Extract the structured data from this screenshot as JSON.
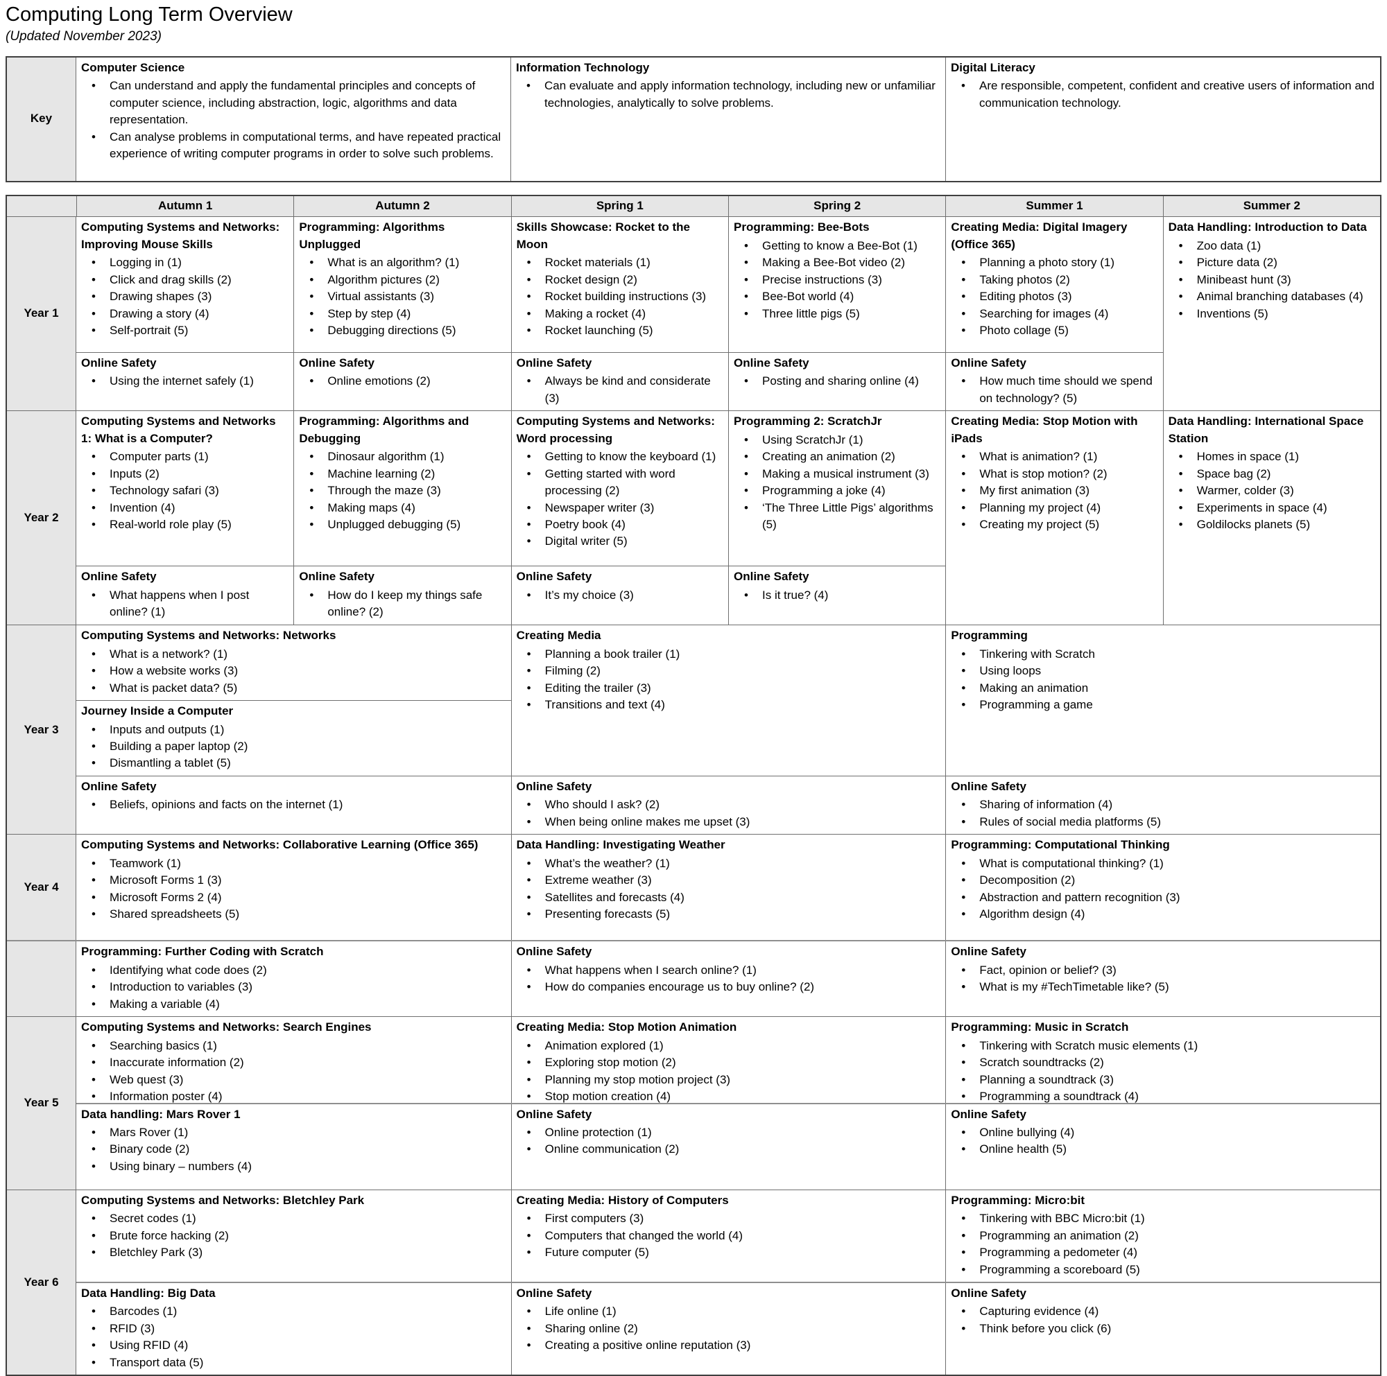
{
  "page": {
    "title": "Computing Long Term Overview",
    "subtitle": "(Updated November 2023)"
  },
  "colors": {
    "header_fill": "#e6e6e6",
    "grid_line": "#6f6f6f",
    "outer_border": "#3f3f3f",
    "subband_line": "#8f8f8f"
  },
  "key": {
    "label": "Key",
    "columns": [
      {
        "title": "Computer Science",
        "bullets": [
          "Can understand and apply the fundamental principles and concepts of computer science, including abstraction, logic, algorithms and data representation.",
          "Can analyse problems in computational terms, and have repeated practical experience of writing computer programs in order to solve such problems."
        ]
      },
      {
        "title": "Information Technology",
        "bullets": [
          "Can evaluate and apply information technology, including new or unfamiliar technologies, analytically to solve problems."
        ]
      },
      {
        "title": "Digital Literacy",
        "bullets": [
          "Are responsible, competent, confident and creative users of information and communication technology."
        ]
      }
    ]
  },
  "terms": [
    "Autumn 1",
    "Autumn 2",
    "Spring 1",
    "Spring 2",
    "Summer 1",
    "Summer 2"
  ],
  "years": [
    {
      "label": "Year 1",
      "label_span": "all",
      "rows": [
        {
          "cells": [
            {
              "span": 1,
              "sections": [
                {
                  "title": "Computing Systems and Networks: Improving Mouse Skills",
                  "bullets": [
                    "Logging in (1)",
                    "Click and drag skills (2)",
                    "Drawing shapes (3)",
                    "Drawing a story (4)",
                    "Self-portrait (5)"
                  ]
                }
              ],
              "safety": {
                "title": "Online Safety",
                "bullets": [
                  "Using the internet safely (1)"
                ]
              }
            },
            {
              "span": 1,
              "sections": [
                {
                  "title": "Programming: Algorithms Unplugged",
                  "bullets": [
                    "What is an algorithm? (1)",
                    "Algorithm pictures (2)",
                    "Virtual assistants (3)",
                    "Step by step (4)",
                    "Debugging directions (5)"
                  ]
                }
              ],
              "safety": {
                "title": "Online Safety",
                "bullets": [
                  "Online emotions (2)"
                ]
              }
            },
            {
              "span": 1,
              "sections": [
                {
                  "title": "Skills Showcase: Rocket to the Moon",
                  "bullets": [
                    "Rocket materials (1)",
                    "Rocket design (2)",
                    "Rocket building instructions (3)",
                    "Making a rocket (4)",
                    "Rocket launching (5)"
                  ]
                }
              ],
              "safety": {
                "title": "Online Safety",
                "bullets": [
                  "Always be kind and considerate (3)"
                ]
              }
            },
            {
              "span": 1,
              "sections": [
                {
                  "title": "Programming: Bee-Bots",
                  "bullets": [
                    "Getting to know a Bee-Bot (1)",
                    "Making a Bee-Bot video (2)",
                    "Precise instructions (3)",
                    "Bee-Bot world (4)",
                    "Three little pigs (5)"
                  ]
                }
              ],
              "safety": {
                "title": "Online Safety",
                "bullets": [
                  "Posting and sharing online (4)"
                ]
              }
            },
            {
              "span": 1,
              "sections": [
                {
                  "title": "Creating Media: Digital Imagery (Office 365)",
                  "bullets": [
                    "Planning a photo story (1)",
                    "Taking photos (2)",
                    "Editing photos (3)",
                    "Searching for images (4)",
                    "Photo collage (5)"
                  ]
                }
              ],
              "safety": {
                "title": "Online Safety",
                "bullets": [
                  "How much time should we spend on technology? (5)"
                ]
              }
            },
            {
              "span": 1,
              "sections": [
                {
                  "title": "Data Handling: Introduction to Data",
                  "bullets": [
                    "Zoo data (1)",
                    "Picture data (2)",
                    "Minibeast hunt (3)",
                    "Animal branching databases (4)",
                    "Inventions (5)"
                  ]
                }
              ],
              "safety": null
            }
          ]
        }
      ]
    },
    {
      "label": "Year 2",
      "label_span": "all",
      "rows": [
        {
          "cells": [
            {
              "span": 1,
              "sections": [
                {
                  "title": "Computing Systems and Networks 1: What is a Computer?",
                  "bullets": [
                    "Computer parts (1)",
                    "Inputs (2)",
                    "Technology safari (3)",
                    "Invention (4)",
                    "Real-world role play (5)"
                  ]
                }
              ],
              "safety": {
                "title": "Online Safety",
                "bullets": [
                  "What happens when I post online? (1)"
                ]
              }
            },
            {
              "span": 1,
              "sections": [
                {
                  "title": "Programming: Algorithms and Debugging",
                  "bullets": [
                    "Dinosaur algorithm (1)",
                    "Machine learning (2)",
                    "Through the maze (3)",
                    "Making maps (4)",
                    "Unplugged debugging (5)"
                  ]
                }
              ],
              "safety": {
                "title": "Online Safety",
                "bullets": [
                  "How do I keep my things safe online? (2)"
                ]
              }
            },
            {
              "span": 1,
              "sections": [
                {
                  "title": "Computing Systems and Networks: Word processing",
                  "bullets": [
                    "Getting to know the keyboard (1)",
                    "Getting started with word processing (2)",
                    "Newspaper writer (3)",
                    "Poetry book (4)",
                    "Digital writer (5)"
                  ]
                }
              ],
              "safety": {
                "title": "Online Safety",
                "bullets": [
                  "It’s my choice (3)"
                ]
              }
            },
            {
              "span": 1,
              "sections": [
                {
                  "title": "Programming 2: ScratchJr",
                  "bullets": [
                    "Using ScratchJr (1)",
                    "Creating an animation (2)",
                    "Making a musical instrument (3)",
                    "Programming a joke (4)",
                    "‘The Three Little Pigs’ algorithms (5)"
                  ]
                }
              ],
              "safety": {
                "title": "Online Safety",
                "bullets": [
                  "Is it true? (4)"
                ]
              }
            },
            {
              "span": 1,
              "sections": [
                {
                  "title": "Creating Media: Stop Motion with iPads",
                  "bullets": [
                    "What is animation? (1)",
                    "What is stop motion? (2)",
                    "My first animation (3)",
                    "Planning my project (4)",
                    "Creating my project (5)"
                  ]
                }
              ],
              "safety": null
            },
            {
              "span": 1,
              "sections": [
                {
                  "title": "Data Handling: International Space Station",
                  "bullets": [
                    "Homes in space (1)",
                    "Space bag (2)",
                    "Warmer, colder (3)",
                    "Experiments in space (4)",
                    "Goldilocks planets (5)"
                  ]
                }
              ],
              "safety": null
            }
          ]
        }
      ]
    },
    {
      "label": "Year 3",
      "label_span": "all",
      "rows": [
        {
          "cells": [
            {
              "span": 2,
              "sections": [
                {
                  "title": "Computing Systems and Networks: Networks",
                  "bullets": [
                    "What is a network? (1)",
                    "How a website works (3)",
                    "What is packet data? (5)"
                  ]
                },
                {
                  "title": "Journey Inside a Computer",
                  "bullets": [
                    "Inputs and outputs (1)",
                    "Building a paper laptop (2)",
                    "Dismantling a tablet (5)"
                  ]
                }
              ],
              "safety": {
                "title": "Online Safety",
                "bullets": [
                  "Beliefs, opinions and facts on the internet (1)"
                ]
              }
            },
            {
              "span": 2,
              "sections": [
                {
                  "title": "Creating Media",
                  "bullets": [
                    "Planning a book trailer (1)",
                    "Filming (2)",
                    "Editing the trailer (3)",
                    "Transitions and text (4)"
                  ]
                }
              ],
              "safety": {
                "title": "Online Safety",
                "bullets": [
                  "Who should I ask? (2)",
                  "When being online makes me upset (3)"
                ]
              }
            },
            {
              "span": 2,
              "sections": [
                {
                  "title": "Programming",
                  "bullets": [
                    "Tinkering with Scratch",
                    "Using loops",
                    "Making an animation",
                    "Programming a game"
                  ]
                }
              ],
              "safety": {
                "title": "Online Safety",
                "bullets": [
                  "Sharing of information (4)",
                  "Rules of social media platforms (5)"
                ]
              }
            }
          ]
        }
      ]
    },
    {
      "label": "Year 4",
      "label_span": "first",
      "rows": [
        {
          "cells": [
            {
              "span": 2,
              "sections": [
                {
                  "title": "Computing Systems and Networks: Collaborative Learning (Office 365)",
                  "bullets": [
                    "Teamwork (1)",
                    "Microsoft Forms 1 (3)",
                    "Microsoft Forms 2 (4)",
                    "Shared spreadsheets (5)"
                  ]
                }
              ],
              "safety": null
            },
            {
              "span": 2,
              "sections": [
                {
                  "title": "Data Handling: Investigating Weather",
                  "bullets": [
                    "What’s the weather? (1)",
                    "Extreme weather (3)",
                    "Satellites and forecasts (4)",
                    "Presenting forecasts (5)"
                  ]
                }
              ],
              "safety": null
            },
            {
              "span": 2,
              "sections": [
                {
                  "title": "Programming: Computational Thinking",
                  "bullets": [
                    "What is computational thinking? (1)",
                    "Decomposition (2)",
                    "Abstraction and pattern recognition (3)",
                    "Algorithm design (4)"
                  ]
                }
              ],
              "safety": null
            }
          ]
        },
        {
          "cells": [
            {
              "span": 2,
              "sections": [
                {
                  "title": "Programming: Further Coding with Scratch",
                  "bullets": [
                    "Identifying what code does (2)",
                    "Introduction to variables (3)",
                    "Making a variable (4)"
                  ]
                }
              ],
              "safety": null
            },
            {
              "span": 2,
              "sections": [
                {
                  "title": "Online Safety",
                  "bullets": [
                    "What happens when I search online? (1)",
                    "How do companies encourage us to buy online? (2)"
                  ]
                }
              ],
              "safety": null
            },
            {
              "span": 2,
              "sections": [
                {
                  "title": "Online Safety",
                  "bullets": [
                    "Fact, opinion or belief? (3)",
                    "What is my #TechTimetable like? (5)"
                  ]
                }
              ],
              "safety": null
            }
          ]
        }
      ]
    },
    {
      "label": "Year 5",
      "label_span": "all",
      "rows": [
        {
          "cells": [
            {
              "span": 2,
              "sections": [
                {
                  "title": "Computing Systems and Networks: Search Engines",
                  "bullets": [
                    "Searching basics (1)",
                    "Inaccurate information (2)",
                    "Web quest (3)",
                    "Information poster (4)"
                  ]
                }
              ],
              "safety": null
            },
            {
              "span": 2,
              "sections": [
                {
                  "title": "Creating Media: Stop Motion Animation",
                  "bullets": [
                    "Animation explored (1)",
                    "Exploring stop motion (2)",
                    "Planning my stop motion project (3)",
                    "Stop motion creation (4)"
                  ]
                }
              ],
              "safety": null
            },
            {
              "span": 2,
              "sections": [
                {
                  "title": "Programming: Music in Scratch",
                  "bullets": [
                    "Tinkering with Scratch music elements (1)",
                    "Scratch soundtracks (2)",
                    "Planning a soundtrack (3)",
                    "Programming a soundtrack (4)"
                  ]
                }
              ],
              "safety": null
            }
          ]
        },
        {
          "cells": [
            {
              "span": 2,
              "sections": [
                {
                  "title": "Data handling: Mars Rover 1",
                  "bullets": [
                    "Mars Rover (1)",
                    "Binary code (2)",
                    "Using binary – numbers (4)"
                  ]
                }
              ],
              "safety": null
            },
            {
              "span": 2,
              "sections": [
                {
                  "title": "Online Safety",
                  "bullets": [
                    "Online protection (1)",
                    "Online communication (2)"
                  ]
                }
              ],
              "safety": null
            },
            {
              "span": 2,
              "sections": [
                {
                  "title": "Online Safety",
                  "bullets": [
                    "Online bullying (4)",
                    "Online health (5)"
                  ]
                }
              ],
              "safety": null
            }
          ]
        }
      ]
    },
    {
      "label": "Year 6",
      "label_span": "all",
      "rows": [
        {
          "cells": [
            {
              "span": 2,
              "sections": [
                {
                  "title": "Computing Systems and Networks: Bletchley Park",
                  "bullets": [
                    "Secret codes (1)",
                    "Brute force hacking (2)",
                    "Bletchley Park (3)"
                  ]
                }
              ],
              "safety": null
            },
            {
              "span": 2,
              "sections": [
                {
                  "title": "Creating Media: History of Computers",
                  "bullets": [
                    "First computers (3)",
                    "Computers that changed the world (4)",
                    "Future computer (5)"
                  ]
                }
              ],
              "safety": null
            },
            {
              "span": 2,
              "sections": [
                {
                  "title": "Programming: Micro:bit",
                  "bullets": [
                    "Tinkering with BBC Micro:bit (1)",
                    "Programming an animation (2)",
                    "Programming a pedometer (4)",
                    "Programming a scoreboard (5)"
                  ]
                }
              ],
              "safety": null
            }
          ]
        },
        {
          "cells": [
            {
              "span": 2,
              "sections": [
                {
                  "title": "Data Handling: Big Data",
                  "bullets": [
                    "Barcodes (1)",
                    "RFID (3)",
                    "Using RFID (4)",
                    "Transport data (5)"
                  ]
                }
              ],
              "safety": null
            },
            {
              "span": 2,
              "sections": [
                {
                  "title": "Online Safety",
                  "bullets": [
                    "Life online (1)",
                    "Sharing online (2)",
                    "Creating a positive online reputation (3)"
                  ]
                }
              ],
              "safety": null
            },
            {
              "span": 2,
              "sections": [
                {
                  "title": "Online Safety",
                  "bullets": [
                    "Capturing evidence (4)",
                    "Think before you click (6)"
                  ]
                }
              ],
              "safety": null
            }
          ]
        }
      ]
    }
  ]
}
